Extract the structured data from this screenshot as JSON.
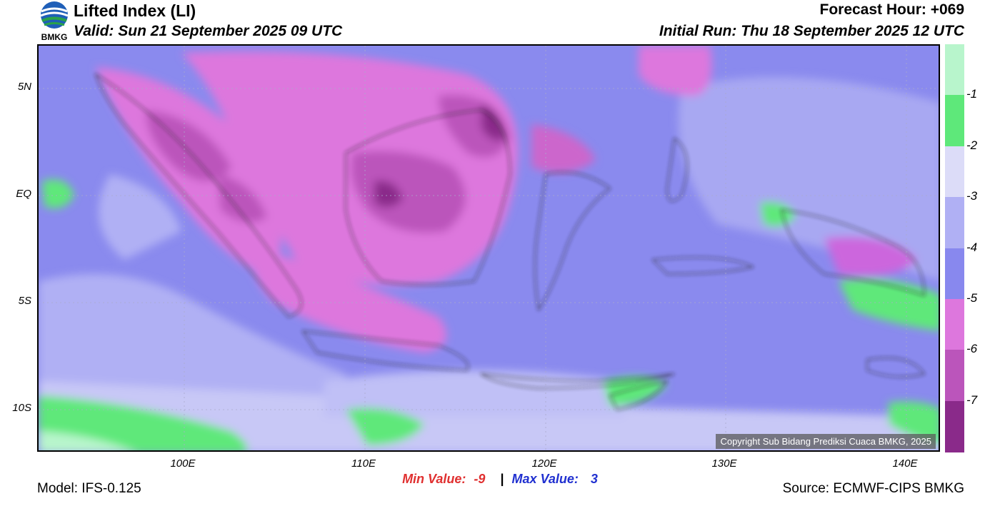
{
  "header": {
    "title": "Lifted Index (LI)",
    "valid": "Valid: Sun 21 September 2025 09 UTC",
    "forecast_hour": "Forecast Hour: +069",
    "initial_run": "Initial Run: Thu 18 September 2025 12 UTC",
    "logo_text": "BMKG"
  },
  "map": {
    "lat_labels": [
      "5N",
      "EQ",
      "5S",
      "10S"
    ],
    "lon_labels": [
      "100E",
      "110E",
      "120E",
      "130E",
      "140E"
    ],
    "copyright": "Copyright Sub Bidang Prediksi Cuaca BMKG, 2025"
  },
  "colorbar": {
    "labels": [
      "-1",
      "-2",
      "-3",
      "-4",
      "-5",
      "-6",
      "-7"
    ],
    "colors": [
      "#b8f5cc",
      "#5ee87a",
      "#dcdcf8",
      "#b0b0f4",
      "#8888ee",
      "#dd77dd",
      "#bb55bb",
      "#8a2a8a"
    ]
  },
  "stats": {
    "min_label": "Min Value:",
    "min_value": "-9",
    "separator": "|",
    "max_label": "Max Value:",
    "max_value": "3",
    "min_color": "#e03030",
    "max_color": "#2030d0"
  },
  "footer": {
    "model": "Model: IFS-0.125",
    "source": "Source: ECMWF-CIPS BMKG"
  }
}
